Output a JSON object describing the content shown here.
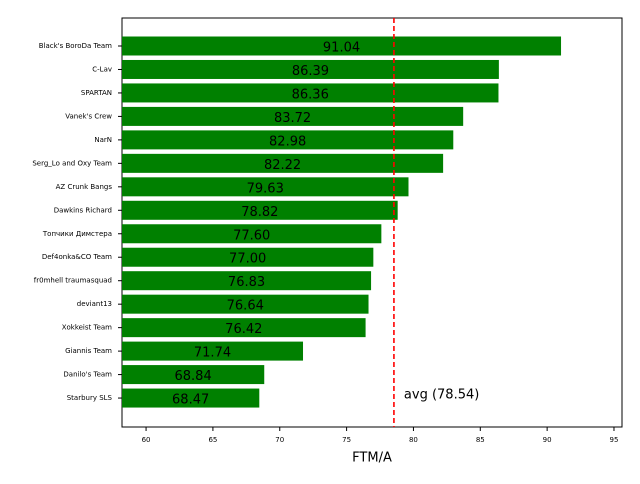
{
  "chart_data": {
    "type": "barh",
    "categories": [
      "Black's BoroDa Team",
      "C-Lav",
      "SPARTAN",
      "Vanek's Crew",
      "NarN",
      "Serg_Lo and Oxy Team",
      "AZ Crunk Bangs",
      "Dawkins Richard",
      "Топчики Димстера",
      "Def4onka&CO Team",
      "fr0mhell traumasquad",
      "deviant13",
      "Xokkeist Team",
      "Giannis Team",
      "Danilo's Team",
      "Starbury SLS"
    ],
    "values": [
      91.04,
      86.39,
      86.36,
      83.72,
      82.98,
      82.22,
      79.63,
      78.82,
      77.6,
      77.0,
      76.83,
      76.64,
      76.42,
      71.74,
      68.84,
      68.47
    ],
    "value_labels": [
      "91.04",
      "86.39",
      "86.36",
      "83.72",
      "82.98",
      "82.22",
      "79.63",
      "78.82",
      "77.60",
      "77.00",
      "76.83",
      "76.64",
      "76.42",
      "71.74",
      "68.84",
      "68.47"
    ],
    "color": "#008000",
    "xlabel": "FTM/A",
    "xlim": [
      58.2,
      95.6
    ],
    "xticks": [
      60,
      65,
      70,
      75,
      80,
      85,
      90,
      95
    ],
    "avg": 78.54,
    "avg_label": "avg (78.54)",
    "avg_color": "#ff0000"
  }
}
